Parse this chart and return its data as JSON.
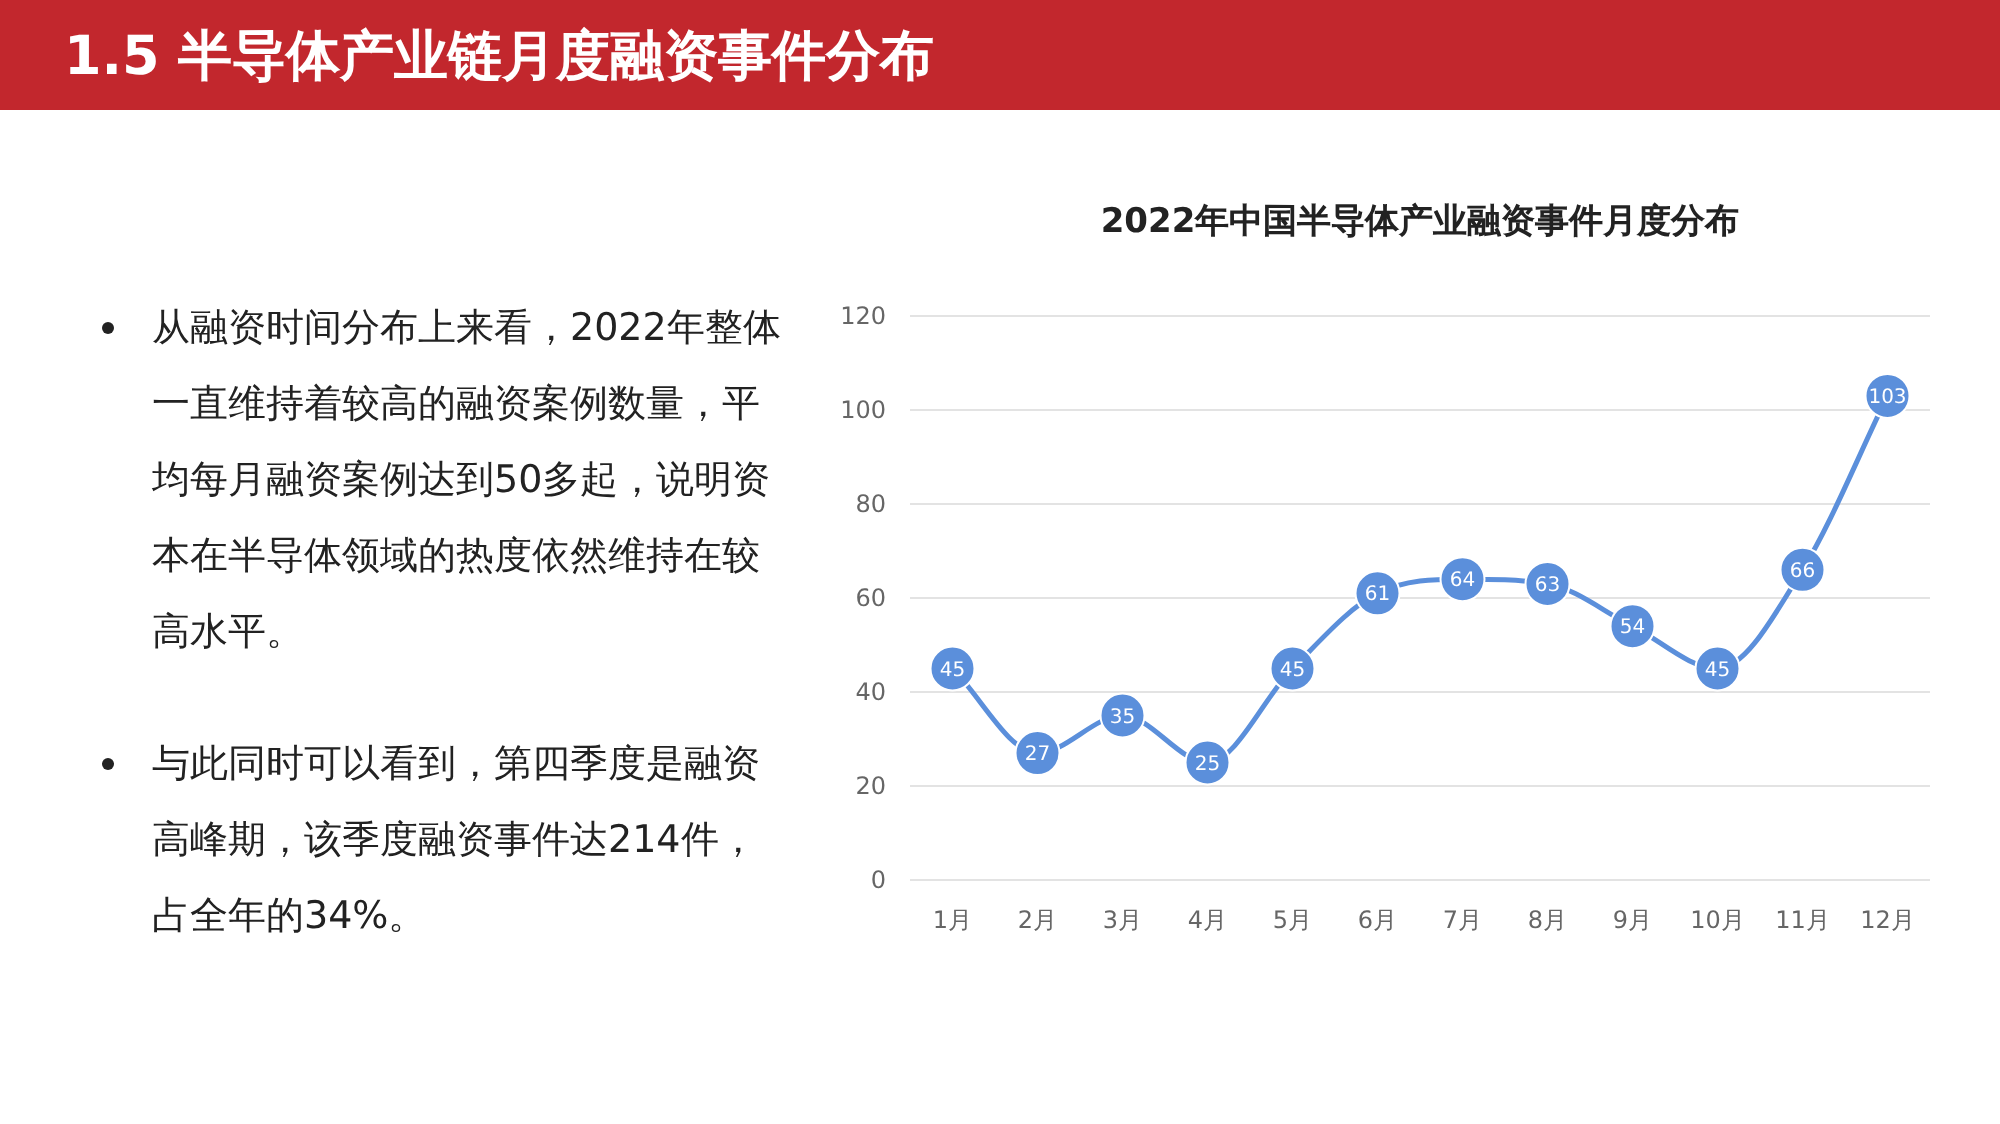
{
  "chart_data": {
    "type": "line",
    "title": "1.5 半导体产业链月度融资事件分布",
    "subtitle": "2022年中国半导体产业融资事件月度分布",
    "annotations": [
      "从融资时间分布上来看，2022年整体一直维持着较高的融资案例数量，平均每月融资案例达到50多起，说明资本在半导体领域的热度依然维持在较高水平。",
      "与此同时可以看到，第四季度是融资高峰期，该季度融资事件达214件，占全年的34%。"
    ],
    "categories": [
      "1月",
      "2月",
      "3月",
      "4月",
      "5月",
      "6月",
      "7月",
      "8月",
      "9月",
      "10月",
      "11月",
      "12月"
    ],
    "series": [
      {
        "color": "#5b8fdb",
        "values": [
          45,
          27,
          35,
          25,
          45,
          61,
          64,
          63,
          54,
          45,
          66,
          103
        ]
      }
    ],
    "ylim": [
      0,
      120
    ],
    "yticks": [
      0,
      20,
      40,
      60,
      80,
      100,
      120
    ],
    "grid": "y",
    "marker": "circle",
    "data_labels": true
  }
}
